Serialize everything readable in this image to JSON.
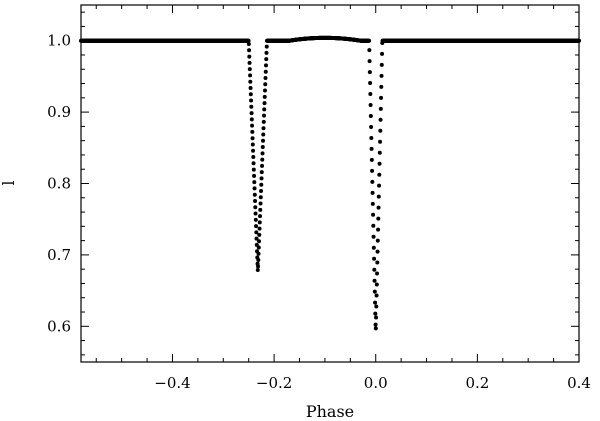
{
  "chart_data": {
    "type": "scatter",
    "title": "",
    "xlabel": "Phase",
    "ylabel": "l",
    "xlim": [
      -0.58,
      0.4
    ],
    "ylim": [
      0.55,
      1.05
    ],
    "grid": false,
    "legend": "none",
    "x_ticks": [
      -0.4,
      -0.2,
      0.0,
      0.2,
      0.4
    ],
    "x_tick_labels": [
      "−0.4",
      "−0.2",
      "0.0",
      "0.2",
      "0.4"
    ],
    "y_ticks": [
      0.6,
      0.7,
      0.8,
      0.9,
      1.0
    ],
    "y_tick_labels": [
      "0.6",
      "0.7",
      "0.8",
      "0.9",
      "1.0"
    ],
    "series": [
      {
        "color": "#000000",
        "marker": "filled-circle",
        "baseline": 1.0,
        "features": [
          {
            "kind": "eclipse",
            "center": -0.232,
            "half_width": 0.018,
            "min_value": 0.677
          },
          {
            "kind": "eclipse",
            "center": 0.0,
            "half_width": 0.013,
            "min_value": 0.592
          },
          {
            "kind": "bump",
            "center": -0.1,
            "half_width": 0.07,
            "amplitude": 0.004
          }
        ]
      }
    ]
  }
}
